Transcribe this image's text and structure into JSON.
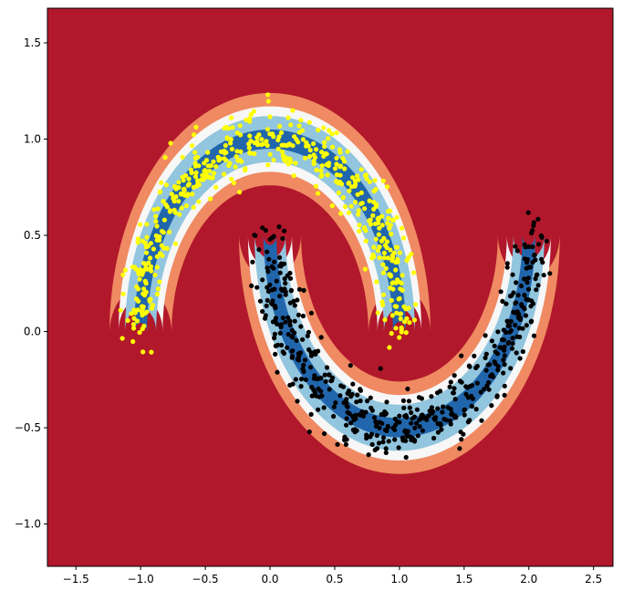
{
  "chart_data": {
    "type": "scatter",
    "title": "",
    "xlabel": "",
    "ylabel": "",
    "xlim": [
      -1.72,
      2.65
    ],
    "ylim": [
      -1.22,
      1.68
    ],
    "xticks": [
      "−1.5",
      "−1.0",
      "−0.5",
      "0.0",
      "0.5",
      "1.0",
      "1.5",
      "2.0",
      "2.5"
    ],
    "xtick_values": [
      -1.5,
      -1.0,
      -0.5,
      0.0,
      0.5,
      1.0,
      1.5,
      2.0,
      2.5
    ],
    "yticks": [
      "−1.0",
      "−0.5",
      "0.0",
      "0.5",
      "1.0",
      "1.5"
    ],
    "ytick_values": [
      -1.0,
      -0.5,
      0.0,
      0.5,
      1.0,
      1.5
    ],
    "grid": false,
    "background_color": "#b2182b",
    "contour_levels": [
      {
        "level": 1,
        "color": "#ef8a62",
        "thickness": 0.24
      },
      {
        "level": 2,
        "color": "#f7f7f7",
        "thickness": 0.17
      },
      {
        "level": 3,
        "color": "#92c5de",
        "thickness": 0.12
      },
      {
        "level": 4,
        "color": "#2166ac",
        "thickness": 0.05
      }
    ],
    "series": [
      {
        "color": "#ffff00",
        "shape": "upper-moon",
        "center": [
          0.0,
          0.0
        ],
        "radius": 1.0,
        "noise": 0.08,
        "count": 500,
        "points": []
      },
      {
        "color": "#000000",
        "shape": "lower-moon",
        "center": [
          1.0,
          0.5
        ],
        "radius": 1.0,
        "noise": 0.08,
        "count": 500,
        "points": []
      }
    ]
  }
}
